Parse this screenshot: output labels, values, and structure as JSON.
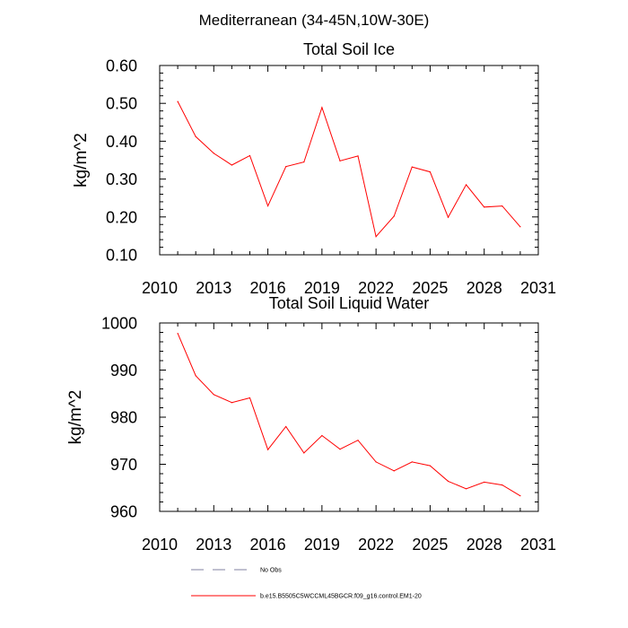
{
  "suptitle": "Mediterranean (34-45N,10W-30E)",
  "legend": [
    {
      "label": "No Obs",
      "color": "#8080a0",
      "style": "dashed"
    },
    {
      "label": "b.e15.B5505C5WCCML45BGCR.f09_g16.control.EM1-20",
      "color": "#ff0000",
      "style": "solid"
    }
  ],
  "chart_data": [
    {
      "type": "line",
      "title": "Total Soil Ice",
      "xlabel": "",
      "ylabel": "kg/m^2",
      "xlim": [
        2010,
        2031
      ],
      "ylim": [
        0.1,
        0.6
      ],
      "xticks": [
        2010,
        2013,
        2016,
        2019,
        2022,
        2025,
        2028,
        2031
      ],
      "xticklabels": [
        "2010",
        "2013",
        "2016",
        "2019",
        "2022",
        "2025",
        "2028",
        "2031"
      ],
      "yticks": [
        0.1,
        0.2,
        0.3,
        0.4,
        0.5,
        0.6
      ],
      "yticklabels": [
        "0.10",
        "0.20",
        "0.30",
        "0.40",
        "0.50",
        "0.60"
      ],
      "series": [
        {
          "name": "b.e15.B5505C5WCCML45BGCR.f09_g16.control.EM1-20",
          "color": "#ff0000",
          "x": [
            2011,
            2012,
            2013,
            2014,
            2015,
            2016,
            2017,
            2018,
            2019,
            2020,
            2021,
            2022,
            2023,
            2024,
            2025,
            2026,
            2027,
            2028,
            2029,
            2030
          ],
          "values": [
            0.505,
            0.412,
            0.368,
            0.337,
            0.362,
            0.229,
            0.333,
            0.345,
            0.489,
            0.348,
            0.361,
            0.148,
            0.202,
            0.332,
            0.319,
            0.199,
            0.285,
            0.226,
            0.229,
            0.174
          ]
        }
      ]
    },
    {
      "type": "line",
      "title": "Total Soil Liquid Water",
      "xlabel": "",
      "ylabel": "kg/m^2",
      "xlim": [
        2010,
        2031
      ],
      "ylim": [
        960,
        1000
      ],
      "xticks": [
        2010,
        2013,
        2016,
        2019,
        2022,
        2025,
        2028,
        2031
      ],
      "xticklabels": [
        "2010",
        "2013",
        "2016",
        "2019",
        "2022",
        "2025",
        "2028",
        "2031"
      ],
      "yticks": [
        960,
        970,
        980,
        990,
        1000
      ],
      "yticklabels": [
        "960",
        "970",
        "980",
        "990",
        "1000"
      ],
      "series": [
        {
          "name": "b.e15.B5505C5WCCML45BGCR.f09_g16.control.EM1-20",
          "color": "#ff0000",
          "x": [
            2011,
            2012,
            2013,
            2014,
            2015,
            2016,
            2017,
            2018,
            2019,
            2020,
            2021,
            2022,
            2023,
            2024,
            2025,
            2026,
            2027,
            2028,
            2029,
            2030
          ],
          "values": [
            997.8,
            988.8,
            984.8,
            983.1,
            984.1,
            973.1,
            978.0,
            972.4,
            976.1,
            973.2,
            975.1,
            970.5,
            968.6,
            970.5,
            969.7,
            966.4,
            964.8,
            966.2,
            965.6,
            963.3
          ]
        }
      ]
    }
  ]
}
